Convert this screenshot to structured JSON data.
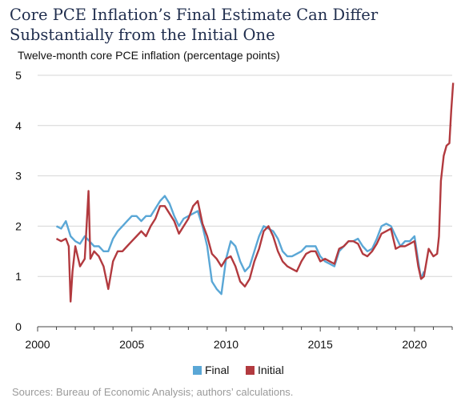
{
  "chart_data": {
    "type": "line",
    "title": "Core PCE Inflation’s Final Estimate Can Differ Substantially from the Initial One",
    "subtitle": "Twelve-month core PCE inflation (percentage points)",
    "source": "Sources: Bureau of Economic Analysis; authors’ calculations.",
    "xlim": [
      2000,
      2022
    ],
    "ylim": [
      0,
      5
    ],
    "x_ticks": [
      2000,
      2005,
      2010,
      2015,
      2020
    ],
    "y_ticks": [
      0,
      1,
      2,
      3,
      4,
      5
    ],
    "grid": "horizontal",
    "legend": "bottom-center",
    "series": [
      {
        "name": "Final",
        "color": "#5aa7d6",
        "points": [
          [
            2001.0,
            2.0
          ],
          [
            2001.25,
            1.95
          ],
          [
            2001.5,
            2.1
          ],
          [
            2001.75,
            1.8
          ],
          [
            2002.0,
            1.7
          ],
          [
            2002.25,
            1.65
          ],
          [
            2002.5,
            1.8
          ],
          [
            2002.75,
            1.7
          ],
          [
            2003.0,
            1.6
          ],
          [
            2003.25,
            1.6
          ],
          [
            2003.5,
            1.5
          ],
          [
            2003.75,
            1.5
          ],
          [
            2004.0,
            1.75
          ],
          [
            2004.25,
            1.9
          ],
          [
            2004.5,
            2.0
          ],
          [
            2004.75,
            2.1
          ],
          [
            2005.0,
            2.2
          ],
          [
            2005.25,
            2.2
          ],
          [
            2005.5,
            2.1
          ],
          [
            2005.75,
            2.2
          ],
          [
            2006.0,
            2.2
          ],
          [
            2006.25,
            2.35
          ],
          [
            2006.5,
            2.5
          ],
          [
            2006.75,
            2.6
          ],
          [
            2007.0,
            2.45
          ],
          [
            2007.25,
            2.2
          ],
          [
            2007.5,
            2.0
          ],
          [
            2007.75,
            2.15
          ],
          [
            2008.0,
            2.2
          ],
          [
            2008.25,
            2.25
          ],
          [
            2008.5,
            2.3
          ],
          [
            2008.75,
            2.0
          ],
          [
            2009.0,
            1.6
          ],
          [
            2009.25,
            0.9
          ],
          [
            2009.5,
            0.75
          ],
          [
            2009.75,
            0.65
          ],
          [
            2010.0,
            1.35
          ],
          [
            2010.25,
            1.7
          ],
          [
            2010.5,
            1.6
          ],
          [
            2010.75,
            1.3
          ],
          [
            2011.0,
            1.1
          ],
          [
            2011.25,
            1.2
          ],
          [
            2011.5,
            1.5
          ],
          [
            2011.75,
            1.8
          ],
          [
            2012.0,
            2.0
          ],
          [
            2012.25,
            1.95
          ],
          [
            2012.5,
            1.9
          ],
          [
            2012.75,
            1.75
          ],
          [
            2013.0,
            1.5
          ],
          [
            2013.25,
            1.4
          ],
          [
            2013.5,
            1.4
          ],
          [
            2013.75,
            1.45
          ],
          [
            2014.0,
            1.5
          ],
          [
            2014.25,
            1.6
          ],
          [
            2014.5,
            1.6
          ],
          [
            2014.75,
            1.6
          ],
          [
            2015.0,
            1.4
          ],
          [
            2015.25,
            1.3
          ],
          [
            2015.5,
            1.25
          ],
          [
            2015.75,
            1.2
          ],
          [
            2016.0,
            1.5
          ],
          [
            2016.25,
            1.6
          ],
          [
            2016.5,
            1.7
          ],
          [
            2016.75,
            1.7
          ],
          [
            2017.0,
            1.75
          ],
          [
            2017.25,
            1.6
          ],
          [
            2017.5,
            1.5
          ],
          [
            2017.75,
            1.55
          ],
          [
            2018.0,
            1.75
          ],
          [
            2018.25,
            2.0
          ],
          [
            2018.5,
            2.05
          ],
          [
            2018.75,
            2.0
          ],
          [
            2019.0,
            1.8
          ],
          [
            2019.25,
            1.6
          ],
          [
            2019.5,
            1.7
          ],
          [
            2019.75,
            1.7
          ],
          [
            2020.0,
            1.8
          ],
          [
            2020.2,
            1.3
          ],
          [
            2020.35,
            0.95
          ],
          [
            2020.5,
            1.1
          ]
        ]
      },
      {
        "name": "Initial",
        "color": "#b23a3f",
        "points": [
          [
            2001.0,
            1.75
          ],
          [
            2001.25,
            1.7
          ],
          [
            2001.5,
            1.75
          ],
          [
            2001.65,
            1.6
          ],
          [
            2001.75,
            0.5
          ],
          [
            2001.85,
            1.1
          ],
          [
            2002.0,
            1.6
          ],
          [
            2002.25,
            1.2
          ],
          [
            2002.5,
            1.35
          ],
          [
            2002.7,
            2.7
          ],
          [
            2002.8,
            1.35
          ],
          [
            2003.0,
            1.5
          ],
          [
            2003.25,
            1.4
          ],
          [
            2003.5,
            1.2
          ],
          [
            2003.75,
            0.75
          ],
          [
            2004.0,
            1.3
          ],
          [
            2004.25,
            1.5
          ],
          [
            2004.5,
            1.5
          ],
          [
            2004.75,
            1.6
          ],
          [
            2005.0,
            1.7
          ],
          [
            2005.25,
            1.8
          ],
          [
            2005.5,
            1.9
          ],
          [
            2005.75,
            1.8
          ],
          [
            2006.0,
            2.0
          ],
          [
            2006.25,
            2.15
          ],
          [
            2006.5,
            2.4
          ],
          [
            2006.75,
            2.4
          ],
          [
            2007.0,
            2.25
          ],
          [
            2007.25,
            2.1
          ],
          [
            2007.5,
            1.85
          ],
          [
            2007.75,
            2.0
          ],
          [
            2008.0,
            2.15
          ],
          [
            2008.25,
            2.4
          ],
          [
            2008.5,
            2.5
          ],
          [
            2008.75,
            2.05
          ],
          [
            2009.0,
            1.8
          ],
          [
            2009.25,
            1.45
          ],
          [
            2009.5,
            1.35
          ],
          [
            2009.75,
            1.2
          ],
          [
            2010.0,
            1.35
          ],
          [
            2010.25,
            1.4
          ],
          [
            2010.5,
            1.2
          ],
          [
            2010.75,
            0.9
          ],
          [
            2011.0,
            0.8
          ],
          [
            2011.25,
            0.95
          ],
          [
            2011.5,
            1.3
          ],
          [
            2011.75,
            1.55
          ],
          [
            2012.0,
            1.9
          ],
          [
            2012.25,
            2.0
          ],
          [
            2012.5,
            1.8
          ],
          [
            2012.75,
            1.5
          ],
          [
            2013.0,
            1.3
          ],
          [
            2013.25,
            1.2
          ],
          [
            2013.5,
            1.15
          ],
          [
            2013.75,
            1.1
          ],
          [
            2014.0,
            1.3
          ],
          [
            2014.25,
            1.45
          ],
          [
            2014.5,
            1.5
          ],
          [
            2014.75,
            1.5
          ],
          [
            2015.0,
            1.3
          ],
          [
            2015.25,
            1.35
          ],
          [
            2015.5,
            1.3
          ],
          [
            2015.75,
            1.25
          ],
          [
            2016.0,
            1.55
          ],
          [
            2016.25,
            1.6
          ],
          [
            2016.5,
            1.7
          ],
          [
            2016.75,
            1.7
          ],
          [
            2017.0,
            1.65
          ],
          [
            2017.25,
            1.45
          ],
          [
            2017.5,
            1.4
          ],
          [
            2017.75,
            1.5
          ],
          [
            2018.0,
            1.65
          ],
          [
            2018.25,
            1.85
          ],
          [
            2018.5,
            1.9
          ],
          [
            2018.75,
            1.95
          ],
          [
            2019.0,
            1.55
          ],
          [
            2019.25,
            1.6
          ],
          [
            2019.5,
            1.6
          ],
          [
            2019.75,
            1.65
          ],
          [
            2020.0,
            1.7
          ],
          [
            2020.2,
            1.2
          ],
          [
            2020.35,
            0.95
          ],
          [
            2020.5,
            1.0
          ],
          [
            2020.75,
            1.55
          ],
          [
            2021.0,
            1.4
          ],
          [
            2021.2,
            1.45
          ],
          [
            2021.3,
            1.8
          ],
          [
            2021.4,
            2.9
          ],
          [
            2021.55,
            3.4
          ],
          [
            2021.7,
            3.6
          ],
          [
            2021.85,
            3.65
          ],
          [
            2021.95,
            4.3
          ],
          [
            2022.05,
            4.85
          ]
        ]
      }
    ]
  }
}
